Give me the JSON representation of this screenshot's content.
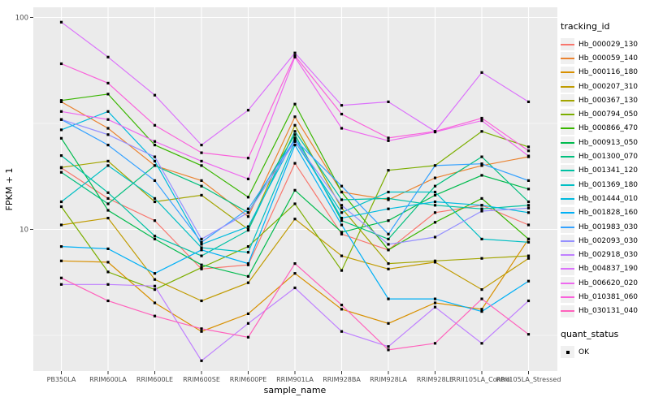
{
  "figure": {
    "xlabel": "sample_name",
    "ylabel": "FPKM + 1",
    "legend_title": "tracking_id",
    "quant_legend_title": "quant_status",
    "quant_ok_label": "OK"
  },
  "style_colors": {
    "panel_bg": "#EBEBEB",
    "grid": "#FFFFFF",
    "tick_text": "#4D4D4D",
    "axis_title_text": "#000000",
    "point": "#000000",
    "legend_key_bg": "#F0F0F0"
  },
  "chart_data": {
    "type": "line",
    "title": "",
    "xlabel": "sample_name",
    "ylabel": "FPKM + 1",
    "y_scale": "log10",
    "ylim": [
      2.2,
      110
    ],
    "y_ticks": [
      10,
      100
    ],
    "y_minor_ticks": [
      3.162,
      31.62
    ],
    "grid": true,
    "legend_position": "right",
    "point_marker": "black-square",
    "quant_status": {
      "label": "OK",
      "marker": "black-square"
    },
    "categories": [
      "PB350LA",
      "RRIM600LA",
      "RRIM600LE",
      "RRIM600SE",
      "RRIM600PE",
      "RRIM901LA",
      "RRIM928BA",
      "RRIM928LA",
      "RRIM928LE",
      "RRII105LA_Control",
      "RRII105LA_Stressed"
    ],
    "series": [
      {
        "name": "Hb_000029_130",
        "color": "#F8766D",
        "values": [
          19.5,
          14.0,
          11.0,
          6.5,
          6.8,
          20.5,
          9.5,
          8.0,
          12.0,
          13.0,
          10.5
        ]
      },
      {
        "name": "Hb_000059_140",
        "color": "#EA8331",
        "values": [
          40.0,
          30.0,
          20.0,
          17.0,
          11.5,
          34.0,
          15.0,
          13.8,
          17.5,
          20.0,
          22.0
        ]
      },
      {
        "name": "Hb_000116_180",
        "color": "#D89000",
        "values": [
          7.1,
          7.0,
          4.5,
          3.3,
          4.0,
          6.2,
          4.2,
          3.6,
          4.5,
          4.2,
          9.0
        ]
      },
      {
        "name": "Hb_000207_310",
        "color": "#C09B00",
        "values": [
          10.5,
          11.3,
          5.8,
          4.6,
          5.6,
          11.2,
          7.5,
          6.5,
          7.0,
          5.2,
          7.3
        ]
      },
      {
        "name": "Hb_000367_130",
        "color": "#A3A500",
        "values": [
          19.6,
          21.0,
          13.5,
          14.5,
          10.0,
          31.0,
          12.6,
          6.9,
          7.1,
          7.3,
          7.5
        ]
      },
      {
        "name": "Hb_000794_050",
        "color": "#7CAE00",
        "values": [
          12.8,
          6.3,
          5.2,
          6.6,
          8.3,
          13.2,
          6.4,
          19.0,
          20.0,
          29.0,
          24.5
        ]
      },
      {
        "name": "Hb_000866_470",
        "color": "#39B600",
        "values": [
          40.6,
          43.5,
          25.0,
          20.0,
          14.2,
          39.0,
          15.0,
          8.0,
          10.8,
          14.0,
          9.0
        ]
      },
      {
        "name": "Hb_000913_050",
        "color": "#00BB4E",
        "values": [
          26.9,
          12.3,
          9.0,
          6.8,
          6.0,
          15.3,
          9.7,
          11.0,
          14.5,
          18.0,
          15.5
        ]
      },
      {
        "name": "Hb_001300_070",
        "color": "#00BF7D",
        "values": [
          18.6,
          13.2,
          20.0,
          16.0,
          12.0,
          28.0,
          11.0,
          9.0,
          16.0,
          22.0,
          13.5
        ]
      },
      {
        "name": "Hb_001341_120",
        "color": "#00C1A3",
        "values": [
          22.3,
          14.9,
          9.3,
          7.5,
          9.9,
          29.0,
          13.8,
          14.0,
          13.0,
          12.5,
          13.0
        ]
      },
      {
        "name": "Hb_001369_180",
        "color": "#00BFC4",
        "values": [
          13.5,
          20.0,
          14.0,
          8.2,
          7.8,
          26.0,
          12.0,
          15.0,
          15.0,
          9.0,
          8.7
        ]
      },
      {
        "name": "Hb_001444_010",
        "color": "#00BADE",
        "values": [
          29.5,
          36.0,
          21.0,
          8.5,
          10.3,
          27.0,
          11.3,
          12.5,
          13.5,
          13.0,
          12.0
        ]
      },
      {
        "name": "Hb_001828_160",
        "color": "#00B0F6",
        "values": [
          8.3,
          8.1,
          6.2,
          8.0,
          6.9,
          25.0,
          10.5,
          4.7,
          4.7,
          4.1,
          5.7
        ]
      },
      {
        "name": "Hb_001983_030",
        "color": "#35A2FF",
        "values": [
          33.0,
          25.0,
          17.0,
          8.7,
          12.5,
          26.5,
          16.0,
          9.5,
          20.0,
          20.4,
          17.0
        ]
      },
      {
        "name": "Hb_002093_030",
        "color": "#9590FF",
        "values": [
          33.0,
          28.0,
          22.0,
          9.0,
          12.0,
          26.0,
          13.0,
          8.5,
          9.2,
          12.2,
          12.6
        ]
      },
      {
        "name": "Hb_002918_030",
        "color": "#BF80FF",
        "values": [
          5.5,
          5.5,
          5.4,
          2.4,
          3.6,
          5.3,
          3.3,
          2.8,
          4.3,
          2.9,
          4.6
        ]
      },
      {
        "name": "Hb_004837_190",
        "color": "#DB72FB",
        "values": [
          95.0,
          65.0,
          43.0,
          25.0,
          36.5,
          68.0,
          38.5,
          40.0,
          29.0,
          55.0,
          40.0
        ]
      },
      {
        "name": "Hb_006620_020",
        "color": "#EE69EF",
        "values": [
          36.0,
          33.0,
          26.0,
          21.0,
          17.3,
          65.0,
          30.0,
          26.2,
          28.8,
          32.6,
          22.2
        ]
      },
      {
        "name": "Hb_010381_060",
        "color": "#FA62DB",
        "values": [
          60.5,
          49.0,
          31.0,
          23.0,
          21.7,
          66.0,
          35.0,
          27.0,
          29.0,
          33.5,
          23.5
        ]
      },
      {
        "name": "Hb_030131_040",
        "color": "#FF62BC",
        "values": [
          5.9,
          4.6,
          3.9,
          3.4,
          3.1,
          6.9,
          4.4,
          2.7,
          2.9,
          4.7,
          3.2
        ]
      }
    ]
  }
}
